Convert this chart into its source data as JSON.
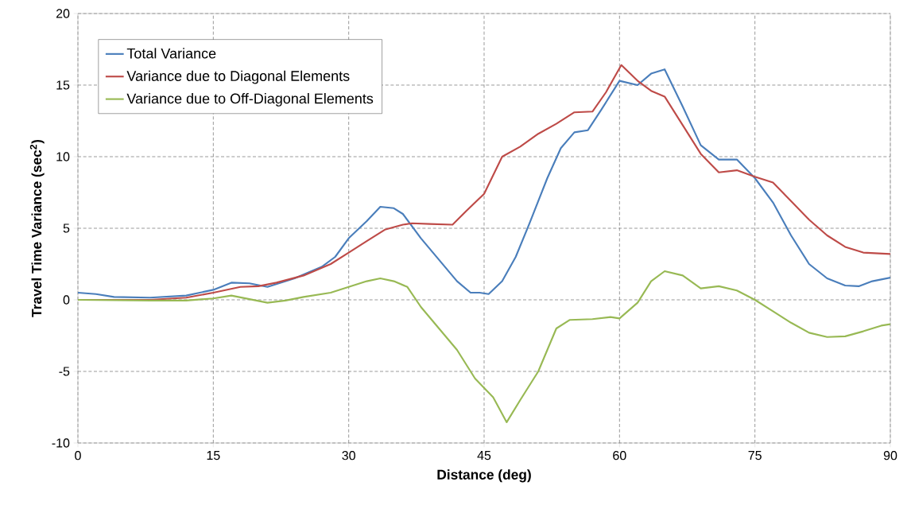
{
  "chart_data": {
    "type": "line",
    "xlabel": "Distance (deg)",
    "ylabel": "Travel Time Variance (sec$^{2}$)",
    "xlim": [
      0,
      90
    ],
    "xticks": [
      0,
      15,
      30,
      45,
      60,
      75,
      90
    ],
    "ylim": [
      -10,
      20
    ],
    "yticks": [
      -10,
      -5,
      0,
      5,
      10,
      15,
      20
    ],
    "grid": true,
    "legend": "top left",
    "marker": "none",
    "line_style": "solid",
    "series": [
      {
        "name": "Total Variance",
        "color": "#4a7ebb",
        "x": [
          0,
          2,
          4,
          8,
          12,
          15,
          17,
          19,
          21,
          24,
          27,
          28.5,
          30,
          32,
          33.5,
          35,
          36,
          38,
          40,
          42,
          43.5,
          44.5,
          45.5,
          47,
          48.5,
          50,
          52,
          53.5,
          55,
          56.5,
          58,
          60,
          62,
          63.5,
          65,
          67,
          69,
          71,
          73,
          75,
          77,
          79,
          81,
          83,
          85,
          86.5,
          88,
          90
        ],
        "values": [
          0.5,
          0.4,
          0.2,
          0.15,
          0.3,
          0.7,
          1.2,
          1.15,
          0.9,
          1.5,
          2.3,
          3,
          4.3,
          5.5,
          6.5,
          6.4,
          6,
          4.3,
          2.8,
          1.3,
          0.5,
          0.5,
          0.4,
          1.3,
          3,
          5.3,
          8.5,
          10.6,
          11.7,
          11.85,
          13.3,
          15.3,
          15,
          15.8,
          16.1,
          13.5,
          10.8,
          9.8,
          9.8,
          8.5,
          6.8,
          4.5,
          2.5,
          1.5,
          1,
          0.95,
          1.3,
          1.55
        ]
      },
      {
        "name": "Variance due to Diagonal Elements",
        "color": "#be4b48",
        "x": [
          0,
          8,
          12,
          15,
          18,
          20,
          22,
          25,
          28,
          30,
          32,
          34,
          36,
          37,
          39,
          41.5,
          43,
          45,
          47,
          49,
          51,
          53,
          55,
          57,
          58.5,
          60.2,
          62,
          63.5,
          65,
          67,
          69,
          71,
          73,
          75,
          77,
          79,
          81,
          83,
          85,
          87,
          90
        ],
        "values": [
          0,
          0,
          0.15,
          0.5,
          0.9,
          0.95,
          1.2,
          1.7,
          2.5,
          3.3,
          4.1,
          4.9,
          5.25,
          5.35,
          5.3,
          5.25,
          6.2,
          7.4,
          10,
          10.7,
          11.6,
          12.3,
          13.1,
          13.15,
          14.5,
          16.4,
          15.3,
          14.6,
          14.2,
          12.2,
          10.2,
          8.9,
          9.05,
          8.6,
          8.2,
          6.9,
          5.6,
          4.5,
          3.7,
          3.3,
          3.2
        ]
      },
      {
        "name": "Variance due to Off-Diagonal Elements",
        "color": "#98b954",
        "x": [
          0,
          8,
          12,
          15,
          17,
          19,
          21,
          23,
          25,
          28,
          30,
          32,
          33.5,
          35,
          36.5,
          38,
          40,
          42,
          44,
          46,
          47.5,
          49,
          51,
          53,
          54.5,
          57,
          59,
          60,
          62,
          63.5,
          65,
          67,
          69,
          71,
          73,
          75,
          77,
          79,
          81,
          83,
          85,
          87,
          89,
          90
        ],
        "values": [
          0,
          -0.05,
          -0.05,
          0.1,
          0.3,
          0.05,
          -0.2,
          -0.05,
          0.2,
          0.5,
          0.9,
          1.3,
          1.5,
          1.3,
          0.9,
          -0.5,
          -2,
          -3.5,
          -5.5,
          -6.8,
          -8.55,
          -7,
          -5,
          -2,
          -1.4,
          -1.35,
          -1.2,
          -1.3,
          -0.2,
          1.3,
          2,
          1.7,
          0.8,
          0.95,
          0.65,
          0,
          -0.8,
          -1.6,
          -2.3,
          -2.6,
          -2.55,
          -2.2,
          -1.8,
          -1.7
        ]
      }
    ]
  }
}
